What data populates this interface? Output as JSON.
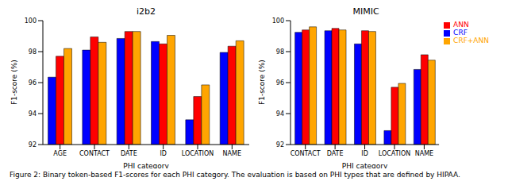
{
  "chart_data": [
    {
      "type": "bar",
      "title": "i2b2",
      "x_label": "PHI category",
      "y_label": "F1-score (%)",
      "categories": [
        "AGE",
        "CONTACT",
        "DATE",
        "ID",
        "LOCATION",
        "NAME"
      ],
      "series": [
        {
          "name": "CRF",
          "color": "#0000ff",
          "values": [
            96.35,
            98.1,
            98.85,
            98.65,
            93.6,
            97.95
          ]
        },
        {
          "name": "ANN",
          "color": "#ff0000",
          "values": [
            97.7,
            98.95,
            99.3,
            98.5,
            95.1,
            98.35
          ]
        },
        {
          "name": "CRF+ANN",
          "color": "#ffa500",
          "values": [
            98.2,
            98.6,
            99.3,
            99.05,
            95.85,
            98.7
          ]
        }
      ],
      "ylim": [
        92,
        100
      ],
      "yticks": [
        92,
        94,
        96,
        98,
        100
      ],
      "grid": false
    },
    {
      "type": "bar",
      "title": "MIMIC",
      "x_label": "PHI category",
      "y_label": "F1-score (%)",
      "categories": [
        "CONTACT",
        "DATE",
        "ID",
        "LOCATION",
        "NAME"
      ],
      "series": [
        {
          "name": "CRF",
          "color": "#0000ff",
          "values": [
            99.25,
            99.35,
            98.5,
            92.9,
            96.85
          ]
        },
        {
          "name": "ANN",
          "color": "#ff0000",
          "values": [
            99.4,
            99.5,
            99.35,
            95.7,
            97.8
          ]
        },
        {
          "name": "CRF+ANN",
          "color": "#ffa500",
          "values": [
            99.6,
            99.4,
            99.3,
            95.95,
            97.45
          ]
        }
      ],
      "ylim": [
        92,
        100
      ],
      "yticks": [
        92,
        94,
        96,
        98,
        100
      ],
      "grid": false,
      "legend": "right"
    }
  ],
  "caption": "Figure 2: Binary token-based F1-scores for each PHI category. The evaluation is based on PHI types that are defined by HIPAA."
}
